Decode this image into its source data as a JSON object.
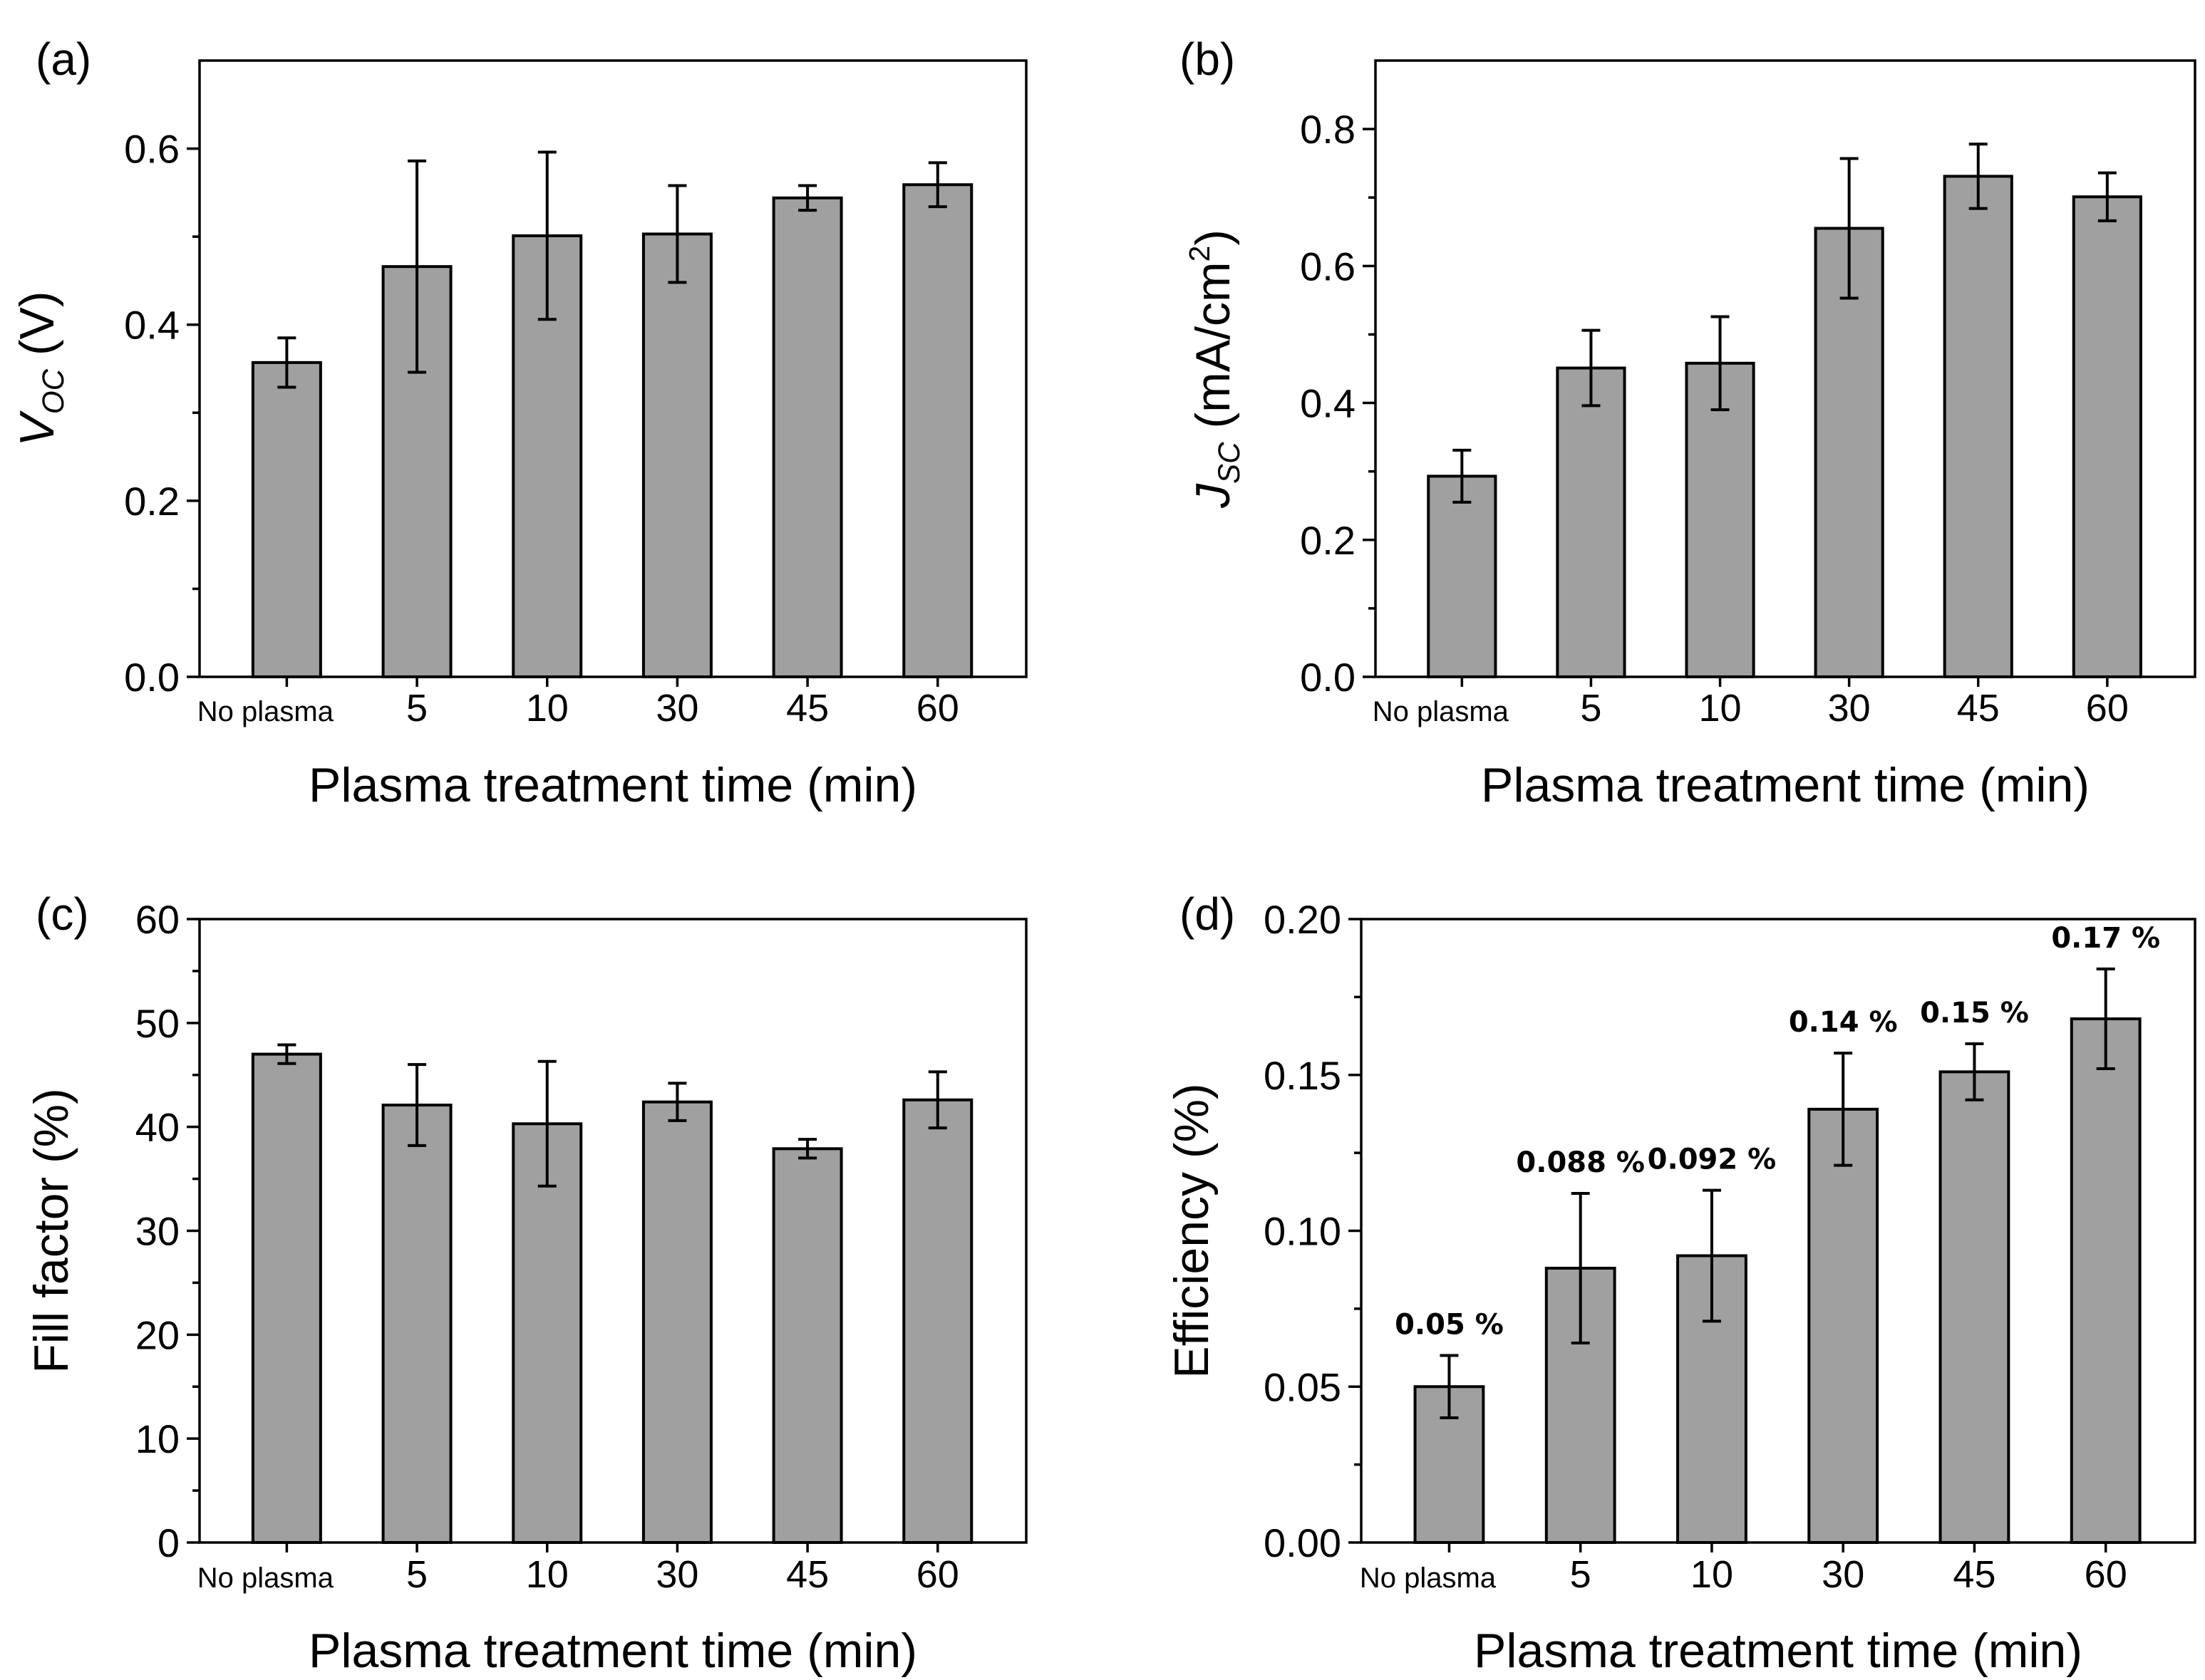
{
  "chart_data": [
    {
      "type": "bar",
      "panel_label": "(a)",
      "categories": [
        "No plasma",
        "5",
        "10",
        "30",
        "45",
        "60"
      ],
      "values": [
        0.357,
        0.466,
        0.501,
        0.503,
        0.544,
        0.559
      ],
      "errors": [
        0.028,
        0.12,
        0.095,
        0.055,
        0.014,
        0.025
      ],
      "ylim": [
        0,
        0.7
      ],
      "yticks": [
        0.0,
        0.2,
        0.4,
        0.6
      ],
      "ytick_labels": [
        "0.0",
        "0.2",
        "0.4",
        "0.6"
      ],
      "yminor": [
        0.1,
        0.3,
        0.5
      ],
      "ylabel_main": "V",
      "ylabel_sub": "OC",
      "ylabel_rest": " (V)",
      "xlabel": "Plasma treatment time (min)"
    },
    {
      "type": "bar",
      "panel_label": "(b)",
      "categories": [
        "No plasma",
        "5",
        "10",
        "30",
        "45",
        "60"
      ],
      "values": [
        0.293,
        0.451,
        0.458,
        0.655,
        0.731,
        0.701
      ],
      "errors": [
        0.038,
        0.055,
        0.068,
        0.102,
        0.047,
        0.035
      ],
      "ylim": [
        0,
        0.9
      ],
      "yticks": [
        0.0,
        0.2,
        0.4,
        0.6,
        0.8
      ],
      "ytick_labels": [
        "0.0",
        "0.2",
        "0.4",
        "0.6",
        "0.8"
      ],
      "yminor": [
        0.1,
        0.3,
        0.5,
        0.7
      ],
      "ylabel_main": "J",
      "ylabel_sub": "SC",
      "ylabel_rest": " (mA/cm",
      "ylabel_sup": "2",
      "ylabel_end": ")",
      "xlabel": "Plasma treatment time (min)"
    },
    {
      "type": "bar",
      "panel_label": "(c)",
      "categories": [
        "No plasma",
        "5",
        "10",
        "30",
        "45",
        "60"
      ],
      "values": [
        47.0,
        42.1,
        40.3,
        42.4,
        37.9,
        42.6
      ],
      "errors": [
        0.9,
        3.9,
        6.0,
        1.8,
        0.9,
        2.7
      ],
      "ylim": [
        0,
        60
      ],
      "yticks": [
        0,
        10,
        20,
        30,
        40,
        50,
        60
      ],
      "ytick_labels": [
        "0",
        "10",
        "20",
        "30",
        "40",
        "50",
        "60"
      ],
      "yminor": [
        5,
        15,
        25,
        35,
        45,
        55
      ],
      "ylabel": "Fill factor (%)",
      "xlabel": "Plasma treatment time (min)"
    },
    {
      "type": "bar",
      "panel_label": "(d)",
      "categories": [
        "No plasma",
        "5",
        "10",
        "30",
        "45",
        "60"
      ],
      "values": [
        0.05,
        0.088,
        0.092,
        0.139,
        0.151,
        0.168
      ],
      "errors": [
        0.01,
        0.024,
        0.021,
        0.018,
        0.009,
        0.016
      ],
      "data_labels": [
        "0.05 %",
        "0.088 %",
        "0.092 %",
        "0.14 %",
        "0.15 %",
        "0.17 %"
      ],
      "ylim": [
        0,
        0.2
      ],
      "yticks": [
        0.0,
        0.05,
        0.1,
        0.15,
        0.2
      ],
      "ytick_labels": [
        "0.00",
        "0.05",
        "0.10",
        "0.15",
        "0.20"
      ],
      "yminor": [
        0.025,
        0.075,
        0.125,
        0.175
      ],
      "ylabel": "Efficiency (%)",
      "xlabel": "Plasma treatment time (min)"
    }
  ]
}
